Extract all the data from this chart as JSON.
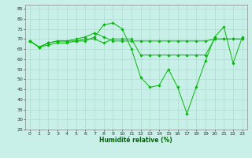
{
  "title": "",
  "xlabel": "Humidité relative (%)",
  "ylabel": "",
  "background_color": "#c8f0e8",
  "grid_color": "#a8d8c8",
  "line_color": "#00bb00",
  "xlim": [
    -0.5,
    23.5
  ],
  "ylim": [
    25,
    87
  ],
  "yticks": [
    25,
    30,
    35,
    40,
    45,
    50,
    55,
    60,
    65,
    70,
    75,
    80,
    85
  ],
  "xticks": [
    0,
    1,
    2,
    3,
    4,
    5,
    6,
    7,
    8,
    9,
    10,
    11,
    12,
    13,
    14,
    15,
    16,
    17,
    18,
    19,
    20,
    21,
    22,
    23
  ],
  "series": [
    [
      69,
      66,
      68,
      69,
      69,
      69,
      69,
      71,
      77,
      78,
      75,
      65,
      51,
      46,
      47,
      55,
      46,
      33,
      46,
      59,
      71,
      76,
      58,
      71
    ],
    [
      69,
      66,
      67,
      68,
      68,
      69,
      70,
      70,
      68,
      70,
      70,
      70,
      62,
      62,
      62,
      62,
      62,
      62,
      62,
      62,
      70,
      70,
      70,
      70
    ],
    [
      69,
      66,
      68,
      69,
      69,
      70,
      71,
      73,
      71,
      69,
      69,
      69,
      69,
      69,
      69,
      69,
      69,
      69,
      69,
      69,
      70,
      70,
      70,
      70
    ]
  ],
  "xlabel_fontsize": 5.5,
  "xlabel_color": "#006600",
  "tick_labelsize": 4.5,
  "linewidth": 0.7,
  "markersize": 1.8
}
